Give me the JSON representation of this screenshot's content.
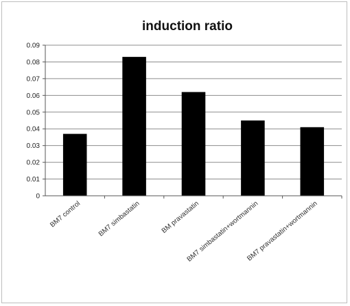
{
  "chart_data": {
    "type": "bar",
    "title": "induction ratio",
    "xlabel": "",
    "ylabel": "",
    "categories": [
      "BM7 control",
      "BM7 simbastatin",
      "BM pravastatin",
      "BM7 simbastatin+wortmannin",
      "BM7 pravastatin+wortmannin"
    ],
    "values": [
      0.037,
      0.083,
      0.062,
      0.045,
      0.041
    ],
    "ylim": [
      0,
      0.09
    ],
    "yticks": [
      "0",
      "0.01",
      "0.02",
      "0.03",
      "0.04",
      "0.05",
      "0.06",
      "0.07",
      "0.08",
      "0.09"
    ],
    "grid": true,
    "legend": "none",
    "bar_color": "#000000",
    "grid_color": "#8c8c8c"
  }
}
